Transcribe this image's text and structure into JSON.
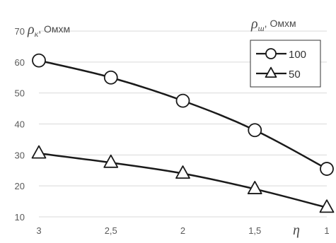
{
  "chart_data": {
    "type": "line",
    "x": [
      3,
      2.5,
      2,
      1.5,
      1
    ],
    "x_tick_labels": [
      "3",
      "2,5",
      "2",
      "1,5",
      "1"
    ],
    "xlabel": "η",
    "xlim": [
      3,
      1
    ],
    "ylabel_left": "ρ",
    "ylabel_left_sub": "к",
    "ylabel_left_unit": ", Омхм",
    "ylabel_right": "ρ",
    "ylabel_right_sub": "ш",
    "ylabel_right_unit": ", Омхм",
    "ylim": [
      10,
      70
    ],
    "y_ticks": [
      10,
      20,
      30,
      40,
      50,
      60,
      70
    ],
    "grid": "horizontal",
    "legend_position": "top-right",
    "series": [
      {
        "name": "100",
        "marker": "circle",
        "values": [
          60.5,
          55,
          47.5,
          38,
          25.5
        ]
      },
      {
        "name": "50",
        "marker": "triangle",
        "values": [
          30.5,
          27.5,
          24,
          19,
          13
        ]
      }
    ],
    "colors": {
      "line": "#1a1a1a",
      "marker_fill": "#ffffff",
      "grid": "#d9d9d9",
      "text": "#5a5a5a"
    }
  }
}
